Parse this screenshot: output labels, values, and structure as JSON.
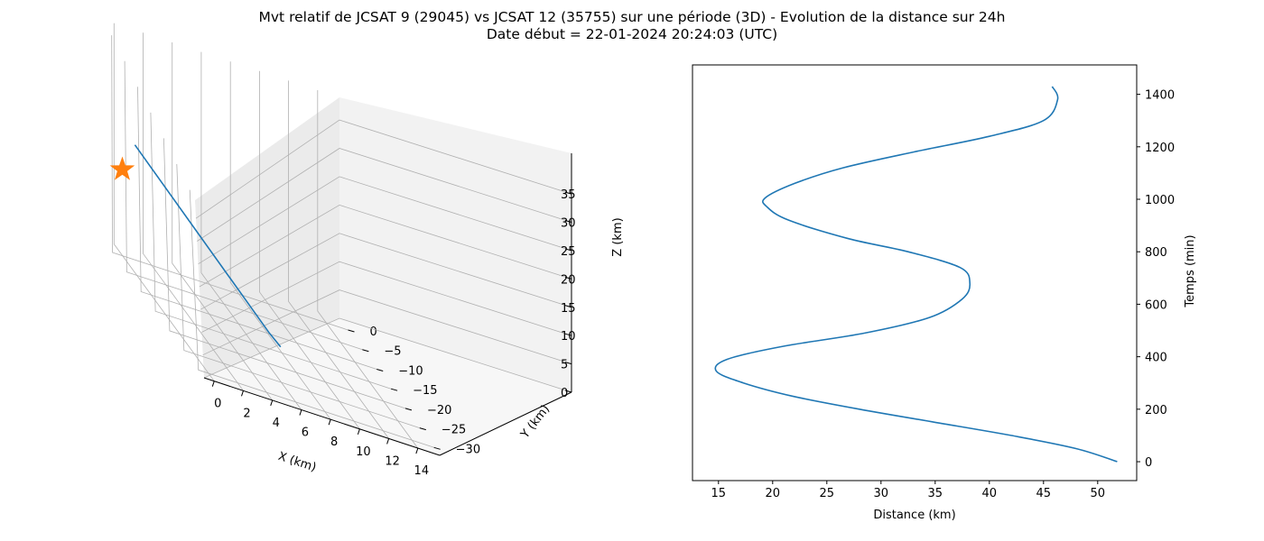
{
  "figure": {
    "title_line1": "Mvt relatif de JCSAT 9 (29045) vs JCSAT 12 (35755) sur une période (3D) - Evolution de la distance sur 24h",
    "title_line2": "Date début = 22-01-2024 20:24:03 (UTC)"
  },
  "colors": {
    "series": "#1f77b4",
    "marker": "#ff7f0e",
    "grid": "#b0b0b0",
    "pane": "#f2f2f2"
  },
  "chart_data": [
    {
      "type": "line3d",
      "xlabel": "X (km)",
      "ylabel": "Y (km)",
      "zlabel": "Z (km)",
      "xlim": [
        -0.7,
        15.5
      ],
      "ylim": [
        -32,
        3
      ],
      "zlim": [
        0,
        39
      ],
      "xticks": [
        "0",
        "2",
        "4",
        "6",
        "8",
        "10",
        "12",
        "14"
      ],
      "yticks": [
        "0",
        "−5",
        "−10",
        "−15",
        "−20",
        "−25",
        "−30"
      ],
      "zticks": [
        "0",
        "5",
        "10",
        "15",
        "20",
        "25",
        "30",
        "35"
      ],
      "grid": true,
      "series": [
        {
          "points": [
            [
              0.5,
              -2.0,
              22.0
            ],
            [
              6.0,
              -21.0,
              7.0
            ],
            [
              6.5,
              -22.5,
              5.8
            ]
          ]
        }
      ],
      "marker": {
        "symbol": "star",
        "point": [
          0.0,
          0.0,
          15.5
        ]
      }
    },
    {
      "type": "line",
      "xlabel": "Distance (km)",
      "ylabel": "Temps (min)",
      "y_axis_side": "right",
      "xlim": [
        12.6,
        53.6
      ],
      "ylim": [
        -72,
        1512
      ],
      "xticks": [
        15,
        20,
        25,
        30,
        35,
        40,
        45,
        50
      ],
      "yticks": [
        0,
        200,
        400,
        600,
        800,
        1000,
        1200,
        1400
      ],
      "grid": false,
      "series": [
        {
          "points": [
            [
              51.8,
              0
            ],
            [
              48.0,
              50
            ],
            [
              42.0,
              100
            ],
            [
              35.0,
              150
            ],
            [
              28.0,
              200
            ],
            [
              21.8,
              250
            ],
            [
              17.3,
              300
            ],
            [
              14.8,
              345
            ],
            [
              15.8,
              390
            ],
            [
              21.0,
              440
            ],
            [
              28.5,
              490
            ],
            [
              34.5,
              550
            ],
            [
              37.5,
              620
            ],
            [
              38.2,
              680
            ],
            [
              37.3,
              740
            ],
            [
              32.5,
              800
            ],
            [
              27.0,
              850
            ],
            [
              21.5,
              920
            ],
            [
              19.5,
              970
            ],
            [
              19.3,
              1005
            ],
            [
              22.0,
              1060
            ],
            [
              26.5,
              1120
            ],
            [
              33.0,
              1180
            ],
            [
              40.0,
              1240
            ],
            [
              45.0,
              1300
            ],
            [
              46.3,
              1380
            ],
            [
              45.8,
              1430
            ]
          ]
        }
      ]
    }
  ]
}
